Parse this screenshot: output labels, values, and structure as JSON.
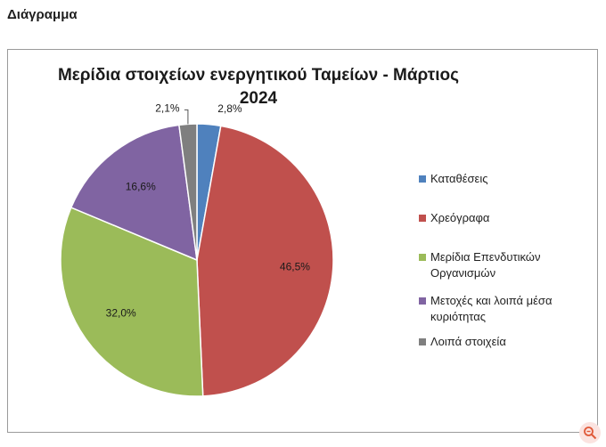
{
  "page": {
    "heading": "Διάγραμμα"
  },
  "chart_data": {
    "type": "pie",
    "title": "Μερίδια στοιχείων ενεργητικού Ταμείων -  Μάρτιος 2024",
    "title_lines": [
      "Μερίδια στοιχείων ενεργητικού Ταμείων -  Μάρτιος",
      "2024"
    ],
    "legend_position": "right",
    "slices": [
      {
        "name": "Καταθέσεις",
        "value": 2.8,
        "label": "2,8%",
        "color": "#4f81bd"
      },
      {
        "name": "Χρεόγραφα",
        "value": 46.5,
        "label": "46,5%",
        "color": "#c0504d"
      },
      {
        "name": "Μερίδια Επενδυτικών Οργανισμών",
        "value": 32.0,
        "label": "32,0%",
        "color": "#9bbb59"
      },
      {
        "name": "Μετοχές και λοιπά μέσα κυριότητας",
        "value": 16.6,
        "label": "16,6%",
        "color": "#8064a2"
      },
      {
        "name": "Λοιπά στοιχεία",
        "value": 2.1,
        "label": "2,1%",
        "color": "#7f7f7f"
      }
    ]
  },
  "legend_lines": [
    [
      "Καταθέσεις"
    ],
    [
      "Χρεόγραφα"
    ],
    [
      "Μερίδια Επενδυτικών",
      "Οργανισμών"
    ],
    [
      "Μετοχές και λοιπά μέσα",
      "κυριότητας"
    ],
    [
      "Λοιπά στοιχεία"
    ]
  ]
}
